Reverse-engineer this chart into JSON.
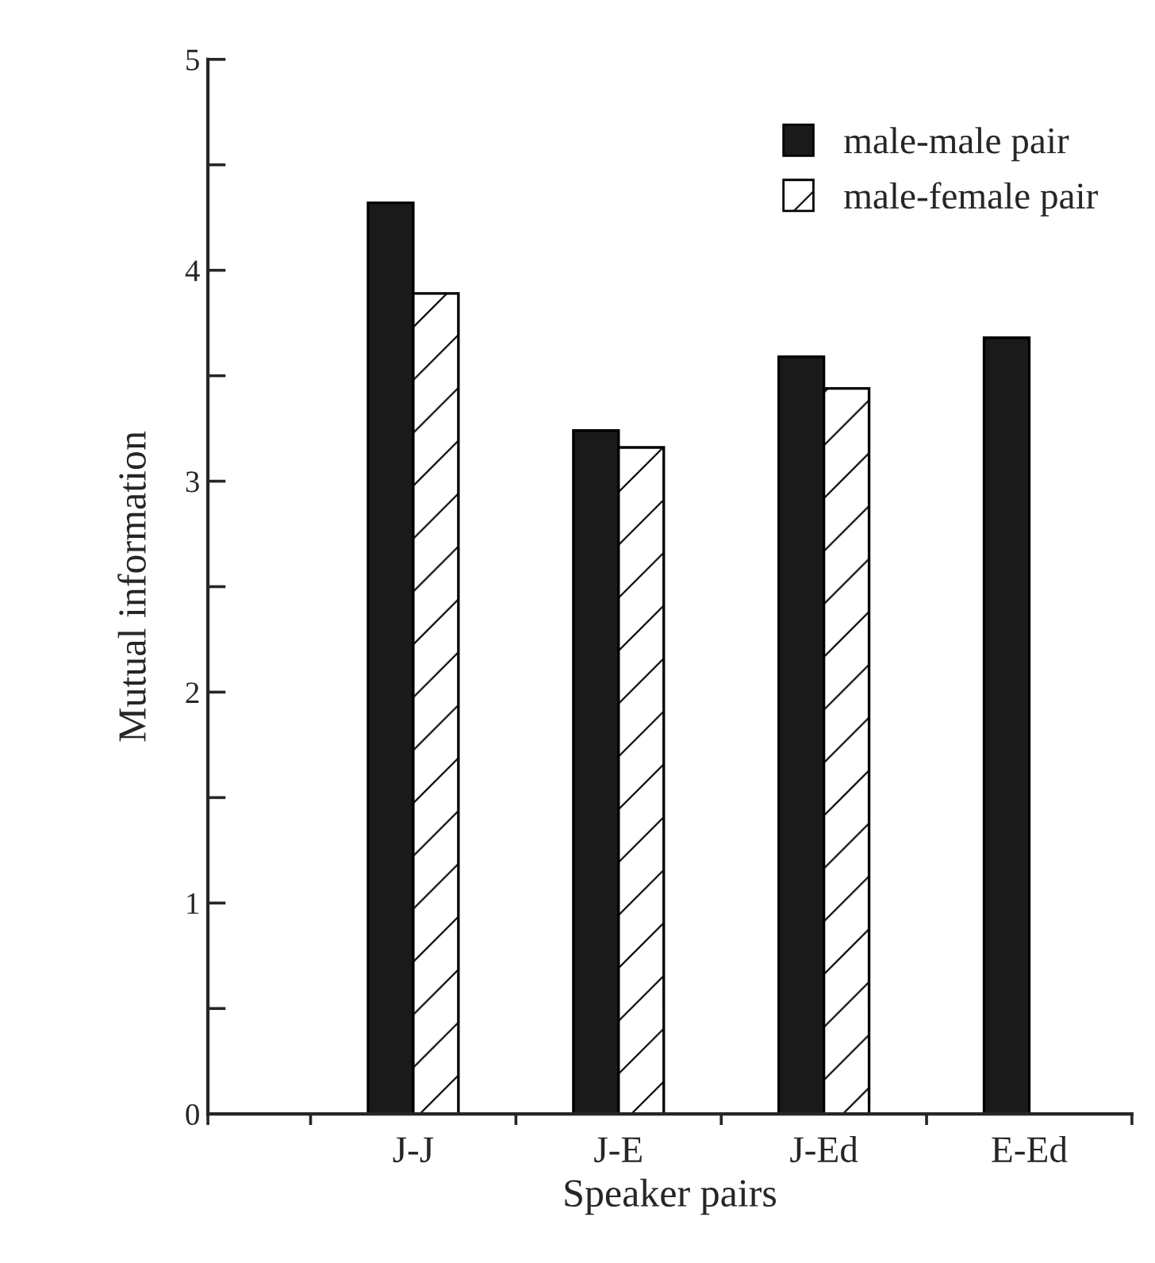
{
  "chart_data": {
    "type": "bar",
    "xlabel": "Speaker pairs",
    "ylabel": "Mutual information",
    "categories": [
      "J-J",
      "J-E",
      "J-Ed",
      "E-Ed"
    ],
    "series": [
      {
        "name": "male-male pair",
        "color": "#1a1a1a",
        "values": [
          4.32,
          3.24,
          3.59,
          3.68
        ]
      },
      {
        "name": "male-female pair",
        "color": "#ffffff",
        "values": [
          3.89,
          3.16,
          3.44,
          null
        ]
      }
    ],
    "ylim": [
      0,
      5
    ],
    "yticks": [
      0,
      {
        "value": 0.5,
        "label": null
      },
      1,
      {
        "value": 1.5,
        "label": null
      },
      2,
      {
        "value": 2.5,
        "label": null
      },
      3,
      {
        "value": 3.5,
        "label": null
      },
      4,
      {
        "value": 4.5,
        "label": null
      },
      5
    ],
    "grid": false,
    "legend": "top right"
  }
}
